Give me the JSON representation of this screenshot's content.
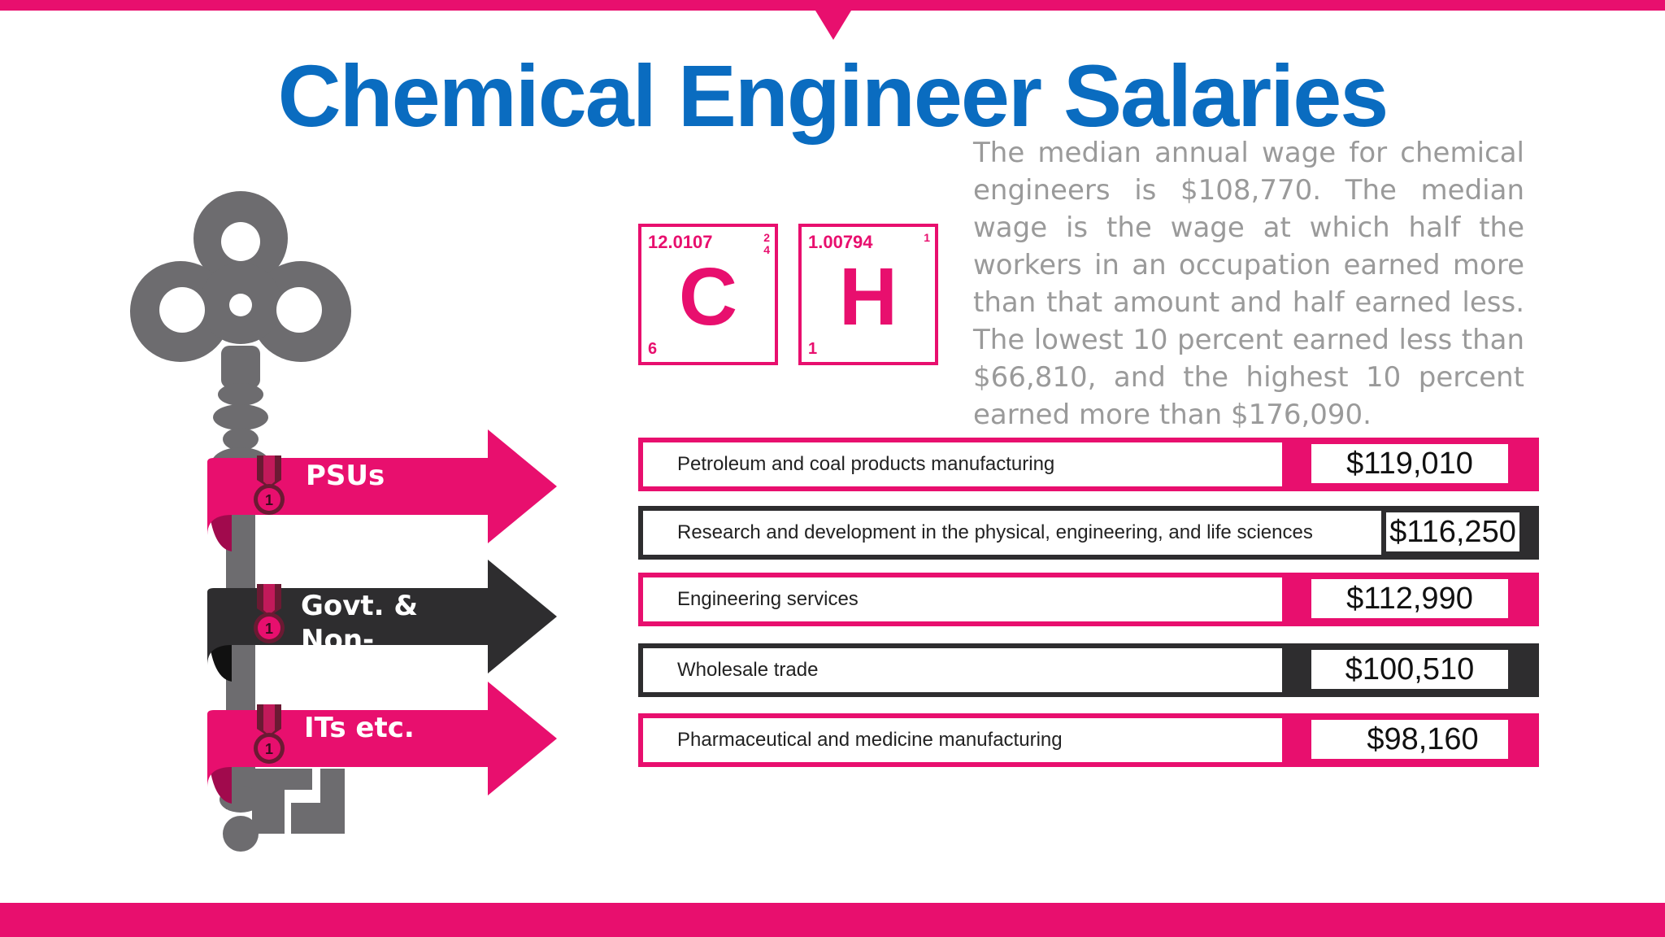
{
  "title": "Chemical Engineer Salaries",
  "description": "The median annual wage for chemical engineers is $108,770. The median wage is the wage at which half the workers in an occupation earned more than that amount and half earned less. The lowest 10 percent earned less than $66,810, and the highest 10 percent earned more than $176,090.",
  "elements": [
    {
      "symbol": "C",
      "mass": "12.0107",
      "number": "6",
      "side": [
        "2",
        "4"
      ]
    },
    {
      "symbol": "H",
      "mass": "1.00794",
      "number": "1",
      "side": [
        "1"
      ]
    }
  ],
  "key_arrows": [
    {
      "label": "PSUs",
      "color": "#e80f6e"
    },
    {
      "label": "Govt. & Non- Govt.",
      "color": "#2e2d2f"
    },
    {
      "label": "ITs etc.",
      "color": "#e80f6e"
    }
  ],
  "medal_digit": "1",
  "salaries": [
    {
      "industry": "Petroleum and coal products manufacturing",
      "salary": "$119,010",
      "color": "#e80f6e"
    },
    {
      "industry": "Research and development in the physical, engineering, and life sciences",
      "salary": "$116,250",
      "color": "#2e2d2f"
    },
    {
      "industry": "Engineering services",
      "salary": "$112,990",
      "color": "#e80f6e"
    },
    {
      "industry": "Wholesale trade",
      "salary": "$100,510",
      "color": "#2e2d2f"
    },
    {
      "industry": "Pharmaceutical and medicine manufacturing",
      "salary": "$98,160",
      "color": "#e80f6e"
    }
  ],
  "colors": {
    "accent": "#e80f6e",
    "dark": "#2e2d2f",
    "title": "#0a6cc0",
    "key": "#6d6c6f"
  }
}
